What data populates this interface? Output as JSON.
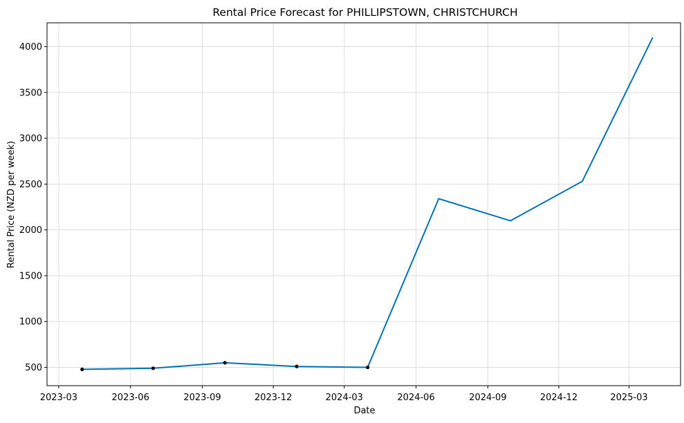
{
  "chart_data": {
    "type": "line",
    "title": "Rental Price Forecast for PHILLIPSTOWN, CHRISTCHURCH",
    "xlabel": "Date",
    "ylabel": "Rental Price (NZD per week)",
    "grid": true,
    "x_ticks": [
      {
        "date": "2023-03-01",
        "label": "2023-03"
      },
      {
        "date": "2023-06-01",
        "label": "2023-06"
      },
      {
        "date": "2023-09-01",
        "label": "2023-09"
      },
      {
        "date": "2023-12-01",
        "label": "2023-12"
      },
      {
        "date": "2024-03-01",
        "label": "2024-03"
      },
      {
        "date": "2024-06-01",
        "label": "2024-06"
      },
      {
        "date": "2024-09-01",
        "label": "2024-09"
      },
      {
        "date": "2024-12-01",
        "label": "2024-12"
      },
      {
        "date": "2025-03-01",
        "label": "2025-03"
      }
    ],
    "xlim": [
      "2023-02-14",
      "2025-05-06"
    ],
    "y_ticks": [
      500,
      1000,
      1500,
      2000,
      2500,
      3000,
      3500,
      4000
    ],
    "ylim": [
      300,
      4260
    ],
    "series": [
      {
        "color": "#0072B2",
        "x": [
          "2023-03-31",
          "2023-06-30",
          "2023-09-30",
          "2023-12-31",
          "2024-03-31",
          "2024-06-30",
          "2024-09-30",
          "2024-12-31",
          "2025-03-31"
        ],
        "y": [
          478,
          490,
          550,
          510,
          500,
          2340,
          2100,
          2530,
          4095
        ]
      }
    ],
    "observed": {
      "color": "#000000",
      "x": [
        "2023-03-31",
        "2023-06-30",
        "2023-09-30",
        "2023-12-31",
        "2024-03-31"
      ],
      "y": [
        478,
        490,
        550,
        510,
        500
      ]
    }
  }
}
